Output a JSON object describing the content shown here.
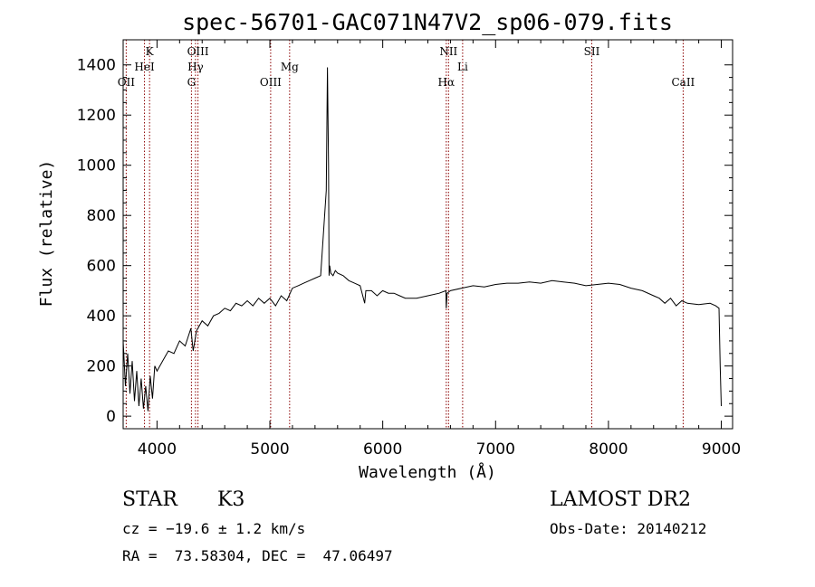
{
  "chart_data": {
    "type": "line",
    "title": "spec-56701-GAC071N47V2_sp06-079.fits",
    "xlabel": "Wavelength (Å)",
    "ylabel": "Flux (relative)",
    "xlim": [
      3700,
      9100
    ],
    "ylim": [
      -50,
      1500
    ],
    "x_ticks": [
      4000,
      5000,
      6000,
      7000,
      8000,
      9000
    ],
    "y_ticks": [
      0,
      200,
      400,
      600,
      800,
      1000,
      1200,
      1400
    ],
    "line_color": "#000000",
    "marker_color": "#8b0000",
    "series": [
      {
        "x": [
          3700,
          3720,
          3740,
          3760,
          3780,
          3800,
          3820,
          3840,
          3860,
          3880,
          3900,
          3920,
          3940,
          3960,
          3980,
          4000,
          4050,
          4100,
          4150,
          4200,
          4250,
          4300,
          4320,
          4350,
          4400,
          4450,
          4500,
          4550,
          4600,
          4650,
          4700,
          4750,
          4800,
          4850,
          4900,
          4950,
          5000,
          5050,
          5100,
          5150,
          5200,
          5250,
          5300,
          5350,
          5400,
          5450,
          5500,
          5510,
          5520,
          5525,
          5530,
          5540,
          5560,
          5580,
          5600,
          5650,
          5700,
          5750,
          5800,
          5840,
          5850,
          5900,
          5950,
          6000,
          6050,
          6100,
          6150,
          6200,
          6300,
          6400,
          6500,
          6560,
          6563,
          6570,
          6600,
          6700,
          6800,
          6900,
          7000,
          7100,
          7200,
          7300,
          7400,
          7500,
          7600,
          7700,
          7800,
          7900,
          8000,
          8100,
          8200,
          8300,
          8400,
          8450,
          8500,
          8550,
          8600,
          8650,
          8700,
          8800,
          8900,
          8950,
          8980,
          8990,
          9000
        ],
        "y": [
          300,
          120,
          250,
          90,
          220,
          60,
          180,
          40,
          150,
          30,
          120,
          20,
          160,
          70,
          200,
          180,
          220,
          260,
          250,
          300,
          280,
          350,
          260,
          340,
          380,
          360,
          400,
          410,
          430,
          420,
          450,
          440,
          460,
          440,
          470,
          450,
          470,
          440,
          480,
          460,
          510,
          520,
          530,
          540,
          550,
          560,
          900,
          1390,
          1000,
          560,
          600,
          570,
          560,
          580,
          570,
          560,
          540,
          530,
          520,
          450,
          500,
          500,
          480,
          500,
          490,
          490,
          480,
          470,
          470,
          480,
          490,
          500,
          430,
          490,
          500,
          510,
          520,
          515,
          525,
          530,
          530,
          535,
          530,
          540,
          535,
          530,
          520,
          525,
          530,
          525,
          510,
          500,
          480,
          470,
          450,
          470,
          440,
          460,
          450,
          445,
          450,
          440,
          430,
          200,
          40
        ]
      }
    ],
    "spectral_lines": [
      {
        "label": "OII",
        "x": 3727,
        "row": 3
      },
      {
        "label": "K",
        "x": 3934,
        "row": 1
      },
      {
        "label": "HeI",
        "x": 3889,
        "row": 2
      },
      {
        "label": "OIII",
        "x": 4363,
        "row": 1
      },
      {
        "label": "Hγ",
        "x": 4341,
        "row": 2
      },
      {
        "label": "G",
        "x": 4305,
        "row": 3
      },
      {
        "label": "OIII",
        "x": 5007,
        "row": 3
      },
      {
        "label": "Mg",
        "x": 5175,
        "row": 2
      },
      {
        "label": "NII",
        "x": 6583,
        "row": 1
      },
      {
        "label": "Hα",
        "x": 6563,
        "row": 3
      },
      {
        "label": "Li",
        "x": 6708,
        "row": 2
      },
      {
        "label": "SII",
        "x": 7852,
        "row": 1
      },
      {
        "label": "CaII",
        "x": 8662,
        "row": 3
      }
    ]
  },
  "info": {
    "object_class": "STAR",
    "subclass": "K3",
    "survey": "LAMOST DR2",
    "cz": "cz = −19.6 ± 1.2 km/s",
    "obs_date": "Obs-Date: 20140212",
    "coords": "RA =  73.58304, DEC =  47.06497"
  }
}
